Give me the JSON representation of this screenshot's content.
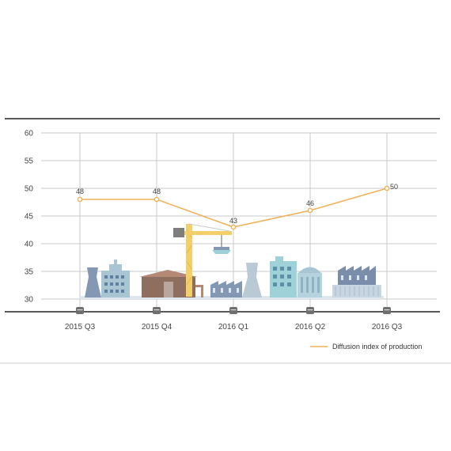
{
  "chart_data": {
    "type": "line",
    "categories": [
      "2015 Q3",
      "2015 Q4",
      "2016 Q1",
      "2016 Q2",
      "2016 Q3"
    ],
    "series": [
      {
        "name": "Diffusion index of production",
        "values": [
          48,
          48,
          43,
          46,
          50
        ]
      }
    ],
    "data_labels": [
      "48",
      "48",
      "43",
      "46",
      "50"
    ],
    "y_ticks": [
      "60",
      "55",
      "50",
      "45",
      "40",
      "35",
      "30"
    ],
    "ylim": [
      30,
      60
    ],
    "grid": "horizontal and vertical",
    "legend_position": "bottom-right",
    "colors": {
      "line": "#f0b15a",
      "grid": "#c8c8c8",
      "axis": "#222222",
      "building_blue": "#8497b3",
      "building_light": "#a9c4d3",
      "building_teal": "#9fd1d8",
      "building_brown": "#8e6e5e",
      "crane": "#f3cf68"
    }
  }
}
